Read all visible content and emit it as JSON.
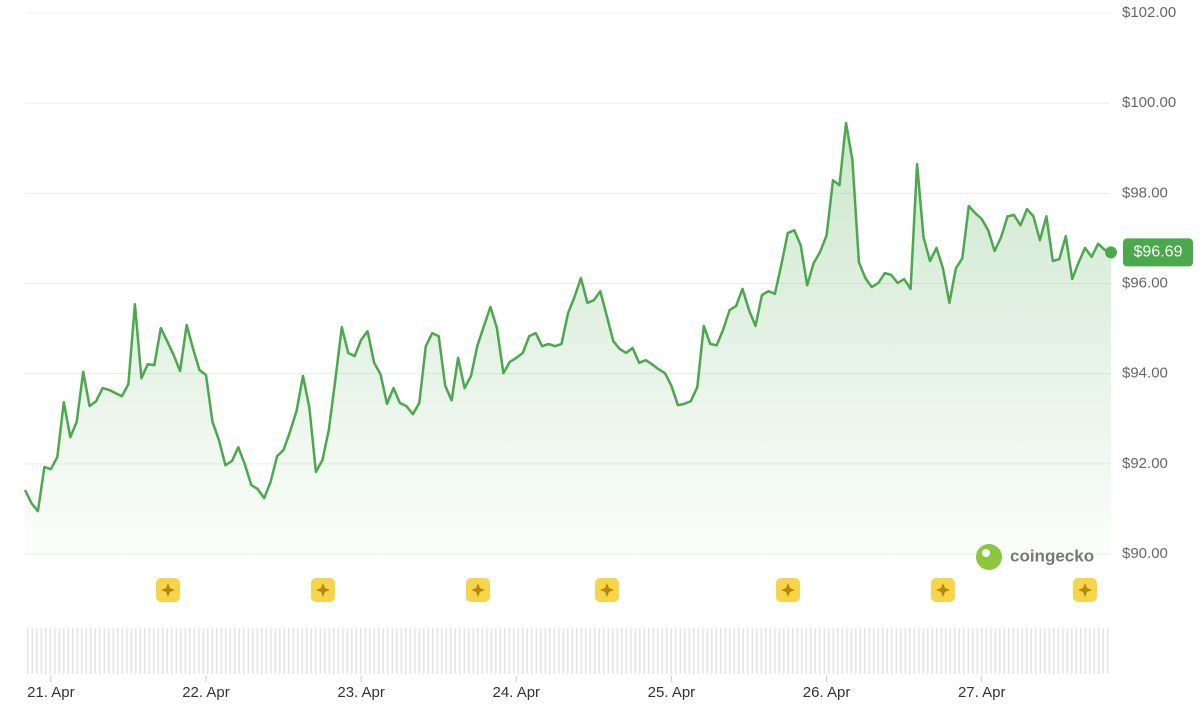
{
  "chart_data": {
    "type": "line",
    "watermark": "coingecko",
    "color": "#4ba84d",
    "grid": true,
    "values": [
      91.42,
      91.13,
      90.95,
      91.93,
      91.88,
      92.15,
      93.37,
      92.59,
      92.93,
      94.04,
      93.28,
      93.39,
      93.68,
      93.64,
      93.57,
      93.5,
      93.77,
      95.54,
      93.9,
      94.21,
      94.19,
      95.01,
      94.72,
      94.41,
      94.06,
      95.08,
      94.55,
      94.08,
      93.97,
      92.93,
      92.53,
      91.97,
      92.06,
      92.37,
      91.99,
      91.53,
      91.44,
      91.24,
      91.6,
      92.17,
      92.31,
      92.71,
      93.17,
      93.95,
      93.24,
      91.82,
      92.08,
      92.75,
      93.86,
      95.03,
      94.46,
      94.39,
      94.75,
      94.94,
      94.24,
      93.99,
      93.33,
      93.68,
      93.35,
      93.28,
      93.1,
      93.35,
      94.61,
      94.9,
      94.83,
      93.73,
      93.41,
      94.35,
      93.68,
      93.95,
      94.63,
      95.06,
      95.48,
      95.01,
      94.01,
      94.26,
      94.35,
      94.46,
      94.83,
      94.9,
      94.61,
      94.66,
      94.61,
      94.66,
      95.34,
      95.7,
      96.12,
      95.57,
      95.63,
      95.83,
      95.28,
      94.72,
      94.55,
      94.46,
      94.57,
      94.24,
      94.3,
      94.21,
      94.1,
      94.01,
      93.73,
      93.3,
      93.33,
      93.39,
      93.7,
      95.06,
      94.66,
      94.63,
      94.97,
      95.41,
      95.5,
      95.88,
      95.41,
      95.06,
      95.74,
      95.83,
      95.77,
      96.41,
      97.12,
      97.18,
      96.85,
      95.96,
      96.45,
      96.7,
      97.07,
      98.29,
      98.18,
      99.56,
      98.74,
      96.47,
      96.12,
      95.92,
      96.01,
      96.23,
      96.19,
      96.01,
      96.1,
      95.88,
      98.65,
      97.03,
      96.5,
      96.79,
      96.34,
      95.57,
      96.34,
      96.56,
      97.72,
      97.56,
      97.43,
      97.18,
      96.72,
      97.03,
      97.49,
      97.52,
      97.29,
      97.65,
      97.49,
      96.96,
      97.49,
      96.5,
      96.54,
      97.05,
      96.1,
      96.47,
      96.79,
      96.59,
      96.88,
      96.75,
      96.69
    ],
    "last_value_label": "$96.69",
    "xlim": [
      0,
      168
    ],
    "xticks": [
      {
        "value": 4,
        "label": "21. Apr"
      },
      {
        "value": 28,
        "label": "22. Apr"
      },
      {
        "value": 52,
        "label": "23. Apr"
      },
      {
        "value": 76,
        "label": "24. Apr"
      },
      {
        "value": 100,
        "label": "25. Apr"
      },
      {
        "value": 124,
        "label": "26. Apr"
      },
      {
        "value": 148,
        "label": "27. Apr"
      }
    ],
    "ylim": [
      90,
      102
    ],
    "yticks": [
      {
        "value": 90,
        "label": "$90.00"
      },
      {
        "value": 92,
        "label": "$92.00"
      },
      {
        "value": 94,
        "label": "$94.00"
      },
      {
        "value": 96,
        "label": "$96.00"
      },
      {
        "value": 98,
        "label": "$98.00"
      },
      {
        "value": 100,
        "label": "$100.00"
      },
      {
        "value": 102,
        "label": "$102.00"
      }
    ]
  }
}
